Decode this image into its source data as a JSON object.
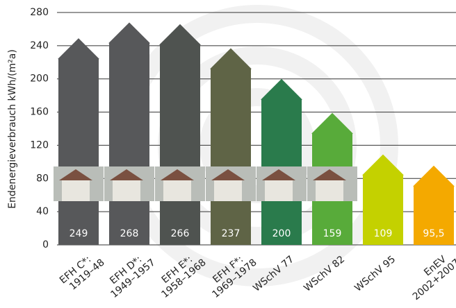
{
  "chart_data": {
    "type": "bar",
    "y_label": "Endenergieverbrauch kWh/(m²a)",
    "categories": [
      [
        "EFH C*:",
        "1919–48"
      ],
      [
        "EFH D*:",
        "1949–1957"
      ],
      [
        "EFH E*:",
        "1958–1968"
      ],
      [
        "EFH F*:",
        "1969–1978"
      ],
      [
        "WSchV 77"
      ],
      [
        "WSchV 82"
      ],
      [
        "WSchV 95"
      ],
      [
        "EnEV",
        "2002+2007"
      ]
    ],
    "values": [
      249,
      268,
      266,
      237,
      200,
      159,
      109,
      95.5
    ],
    "value_labels": [
      "249",
      "268",
      "266",
      "237",
      "200",
      "159",
      "109",
      "95,5"
    ],
    "colors": [
      "#57585a",
      "#57585a",
      "#4f5350",
      "#5f6446",
      "#2a7b4c",
      "#58ab3a",
      "#c4d100",
      "#f4a900"
    ],
    "ylim": [
      0,
      280
    ],
    "yticks": [
      0,
      40,
      80,
      120,
      160,
      200,
      240,
      280
    ],
    "grid": true
  }
}
